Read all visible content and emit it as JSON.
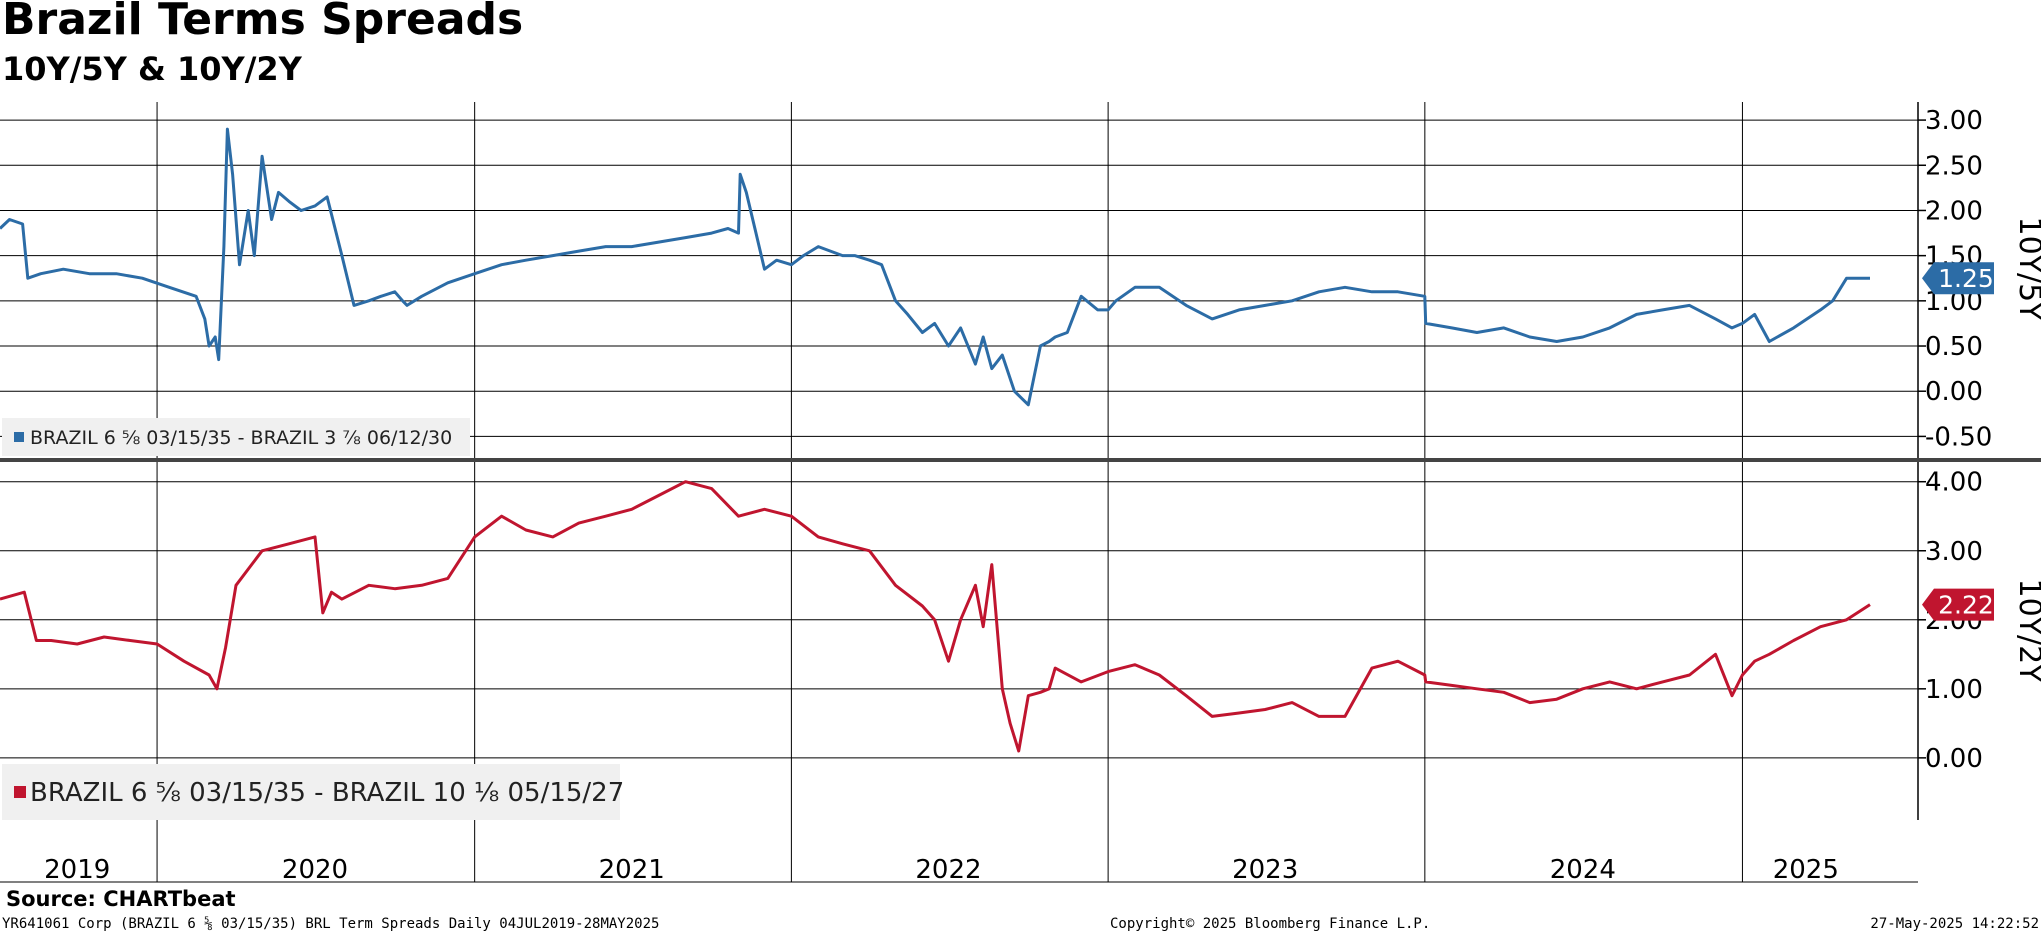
{
  "title": "Brazil Terms Spreads",
  "subtitle": "10Y/5Y & 10Y/2Y",
  "source": "Source: CHARTbeat",
  "footer": {
    "left": "YR641061 Corp (BRAZIL 6 ⅝ 03/15/35) BRL Term Spreads  Daily 04JUL2019-28MAY2025",
    "center": "Copyright© 2025 Bloomberg Finance L.P.",
    "right": "27-May-2025 14:22:52"
  },
  "colors": {
    "series1": "#2c6ca6",
    "series2": "#c0152f",
    "grid": "#000000",
    "legend_bg": "#f0f0f0"
  },
  "chart_data": [
    {
      "type": "line",
      "panel": "top",
      "axis_label": "10Y/5Y",
      "ylim": [
        -0.75,
        3.2
      ],
      "yticks": [
        3.0,
        2.5,
        2.0,
        1.5,
        1.0,
        0.5,
        0.0,
        -0.5
      ],
      "ytick_labels": [
        "3.00",
        "2.50",
        "2.00",
        "1.50",
        "1.00",
        "0.50",
        "0.00",
        "-0.50"
      ],
      "last_value_label": "1.25",
      "legend": "BRAZIL 6 ⅝ 03/15/35 - BRAZIL 3 ⅞ 06/12/30",
      "series": [
        {
          "name": "BRAZIL 6 ⅝ 03/15/35 - BRAZIL 3 ⅞ 06/12/30",
          "x": [
            "2019-07-04",
            "2019-07-15",
            "2019-07-30",
            "2019-08-05",
            "2019-08-20",
            "2019-09-15",
            "2019-10-15",
            "2019-11-15",
            "2019-12-15",
            "2020-01-15",
            "2020-02-15",
            "2020-02-25",
            "2020-03-01",
            "2020-03-08",
            "2020-03-12",
            "2020-03-18",
            "2020-03-22",
            "2020-03-28",
            "2020-04-05",
            "2020-04-15",
            "2020-04-22",
            "2020-05-01",
            "2020-05-12",
            "2020-05-20",
            "2020-06-01",
            "2020-06-15",
            "2020-07-01",
            "2020-07-15",
            "2020-08-01",
            "2020-08-15",
            "2020-09-01",
            "2020-09-15",
            "2020-10-01",
            "2020-10-10",
            "2020-10-15",
            "2020-11-01",
            "2020-12-01",
            "2021-01-01",
            "2021-02-01",
            "2021-03-01",
            "2021-04-01",
            "2021-05-01",
            "2021-06-01",
            "2021-07-01",
            "2021-08-01",
            "2021-09-01",
            "2021-10-01",
            "2021-10-20",
            "2021-11-01",
            "2021-11-03",
            "2021-11-10",
            "2021-11-20",
            "2021-12-01",
            "2021-12-15",
            "2022-01-01",
            "2022-01-15",
            "2022-02-01",
            "2022-02-15",
            "2022-03-01",
            "2022-03-15",
            "2022-04-01",
            "2022-04-15",
            "2022-05-01",
            "2022-05-15",
            "2022-06-01",
            "2022-06-15",
            "2022-07-01",
            "2022-07-15",
            "2022-08-01",
            "2022-08-10",
            "2022-08-20",
            "2022-09-01",
            "2022-09-15",
            "2022-10-01",
            "2022-10-15",
            "2022-10-25",
            "2022-11-01",
            "2022-11-15",
            "2022-12-01",
            "2022-12-20",
            "2023-01-01",
            "2023-01-10",
            "2023-02-01",
            "2023-03-01",
            "2023-04-01",
            "2023-05-01",
            "2023-06-01",
            "2023-07-01",
            "2023-08-01",
            "2023-09-01",
            "2023-10-01",
            "2023-11-01",
            "2023-12-01",
            "2024-01-01",
            "2024-01-02",
            "2024-02-01",
            "2024-03-01",
            "2024-04-01",
            "2024-05-01",
            "2024-06-01",
            "2024-07-01",
            "2024-08-01",
            "2024-09-01",
            "2024-10-01",
            "2024-11-01",
            "2024-12-01",
            "2024-12-20",
            "2025-01-01",
            "2025-01-15",
            "2025-02-01",
            "2025-03-01",
            "2025-04-01",
            "2025-04-15",
            "2025-05-01",
            "2025-05-28"
          ],
          "values": [
            1.8,
            1.9,
            1.85,
            1.25,
            1.3,
            1.35,
            1.3,
            1.3,
            1.25,
            1.15,
            1.05,
            0.8,
            0.5,
            0.6,
            0.35,
            1.6,
            2.9,
            2.4,
            1.4,
            2.0,
            1.5,
            2.6,
            1.9,
            2.2,
            2.1,
            2.0,
            2.05,
            2.15,
            1.5,
            0.95,
            1.0,
            1.05,
            1.1,
            1.0,
            0.95,
            1.05,
            1.2,
            1.3,
            1.4,
            1.45,
            1.5,
            1.55,
            1.6,
            1.6,
            1.65,
            1.7,
            1.75,
            1.8,
            1.75,
            2.4,
            2.2,
            1.8,
            1.35,
            1.45,
            1.4,
            1.5,
            1.6,
            1.55,
            1.5,
            1.5,
            1.45,
            1.4,
            1.0,
            0.85,
            0.65,
            0.75,
            0.5,
            0.7,
            0.3,
            0.6,
            0.25,
            0.4,
            0.0,
            -0.15,
            0.5,
            0.55,
            0.6,
            0.65,
            1.05,
            0.9,
            0.9,
            1.0,
            1.15,
            1.15,
            0.95,
            0.8,
            0.9,
            0.95,
            1.0,
            1.1,
            1.15,
            1.1,
            1.1,
            1.05,
            0.75,
            0.7,
            0.65,
            0.7,
            0.6,
            0.55,
            0.6,
            0.7,
            0.85,
            0.9,
            0.95,
            0.8,
            0.7,
            0.75,
            0.85,
            0.55,
            0.7,
            0.9,
            1.0,
            1.25,
            1.25
          ]
        }
      ]
    },
    {
      "type": "line",
      "panel": "bottom",
      "axis_label": "10Y/2Y",
      "ylim": [
        -0.9,
        4.3
      ],
      "yticks": [
        4.0,
        3.0,
        2.0,
        1.0,
        0.0
      ],
      "ytick_labels": [
        "4.00",
        "3.00",
        "2.00",
        "1.00",
        "0.00"
      ],
      "last_value_label": "2.22",
      "legend": "BRAZIL 6 ⅝ 03/15/35 - BRAZIL 10 ⅛ 05/15/27",
      "series": [
        {
          "name": "BRAZIL 6 ⅝ 03/15/35 - BRAZIL 10 ⅛ 05/15/27",
          "x": [
            "2019-07-04",
            "2019-08-01",
            "2019-08-15",
            "2019-09-01",
            "2019-10-01",
            "2019-11-01",
            "2019-12-01",
            "2020-01-01",
            "2020-02-01",
            "2020-03-01",
            "2020-03-10",
            "2020-03-20",
            "2020-04-01",
            "2020-05-01",
            "2020-06-01",
            "2020-07-01",
            "2020-07-10",
            "2020-07-20",
            "2020-08-01",
            "2020-09-01",
            "2020-10-01",
            "2020-11-01",
            "2020-12-01",
            "2021-01-01",
            "2021-02-01",
            "2021-03-01",
            "2021-04-01",
            "2021-05-01",
            "2021-06-01",
            "2021-07-01",
            "2021-08-01",
            "2021-09-01",
            "2021-10-01",
            "2021-11-01",
            "2021-12-01",
            "2022-01-01",
            "2022-02-01",
            "2022-03-01",
            "2022-04-01",
            "2022-05-01",
            "2022-06-01",
            "2022-06-15",
            "2022-07-01",
            "2022-07-15",
            "2022-08-01",
            "2022-08-10",
            "2022-08-20",
            "2022-09-01",
            "2022-09-10",
            "2022-09-20",
            "2022-10-01",
            "2022-10-15",
            "2022-10-25",
            "2022-11-01",
            "2022-12-01",
            "2023-01-01",
            "2023-02-01",
            "2023-03-01",
            "2023-04-01",
            "2023-05-01",
            "2023-06-01",
            "2023-07-01",
            "2023-08-01",
            "2023-09-01",
            "2023-10-01",
            "2023-11-01",
            "2023-12-01",
            "2024-01-01",
            "2024-01-02",
            "2024-02-01",
            "2024-03-01",
            "2024-04-01",
            "2024-05-01",
            "2024-06-01",
            "2024-07-01",
            "2024-08-01",
            "2024-09-01",
            "2024-10-01",
            "2024-11-01",
            "2024-12-01",
            "2024-12-20",
            "2025-01-01",
            "2025-01-15",
            "2025-02-01",
            "2025-03-01",
            "2025-04-01",
            "2025-05-01",
            "2025-05-28"
          ],
          "values": [
            2.3,
            2.4,
            1.7,
            1.7,
            1.65,
            1.75,
            1.7,
            1.65,
            1.4,
            1.2,
            1.0,
            1.6,
            2.5,
            3.0,
            3.1,
            3.2,
            2.1,
            2.4,
            2.3,
            2.5,
            2.45,
            2.5,
            2.6,
            3.2,
            3.5,
            3.3,
            3.2,
            3.4,
            3.5,
            3.6,
            3.8,
            4.0,
            3.9,
            3.5,
            3.6,
            3.5,
            3.2,
            3.1,
            3.0,
            2.5,
            2.2,
            2.0,
            1.4,
            2.0,
            2.5,
            1.9,
            2.8,
            1.0,
            0.5,
            0.1,
            0.9,
            0.95,
            1.0,
            1.3,
            1.1,
            1.25,
            1.35,
            1.2,
            0.9,
            0.6,
            0.65,
            0.7,
            0.8,
            0.6,
            0.6,
            1.3,
            1.4,
            1.2,
            1.1,
            1.05,
            1.0,
            0.95,
            0.8,
            0.85,
            1.0,
            1.1,
            1.0,
            1.1,
            1.2,
            1.5,
            0.9,
            1.2,
            1.4,
            1.5,
            1.7,
            1.9,
            2.0,
            2.22
          ]
        }
      ]
    }
  ],
  "x_axis": {
    "labels": [
      "2019",
      "2020",
      "2021",
      "2022",
      "2023",
      "2024",
      "2025"
    ],
    "label_dates": [
      "2019-10-01",
      "2020-07-01",
      "2021-07-01",
      "2022-07-01",
      "2023-07-01",
      "2024-07-01",
      "2025-03-15"
    ],
    "gridline_dates": [
      "2020-01-01",
      "2021-01-01",
      "2022-01-01",
      "2023-01-01",
      "2024-01-01",
      "2025-01-01"
    ],
    "range": [
      "2019-07-04",
      "2025-05-28"
    ]
  }
}
